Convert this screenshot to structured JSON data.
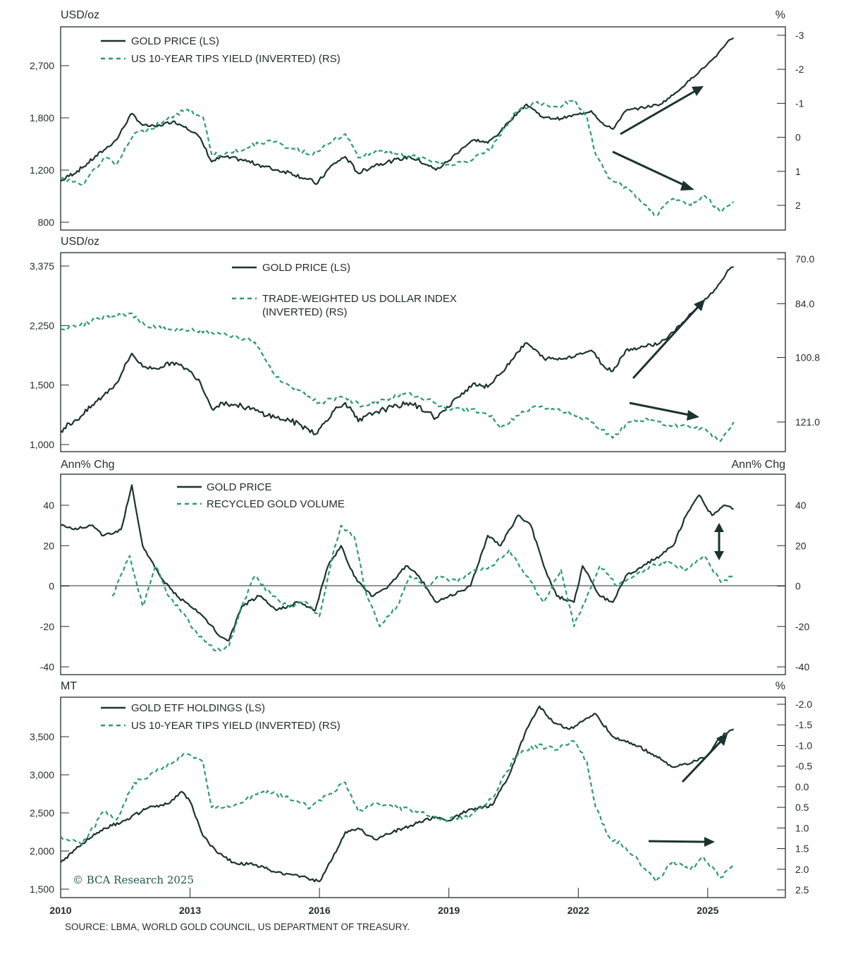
{
  "colors": {
    "gold": "#1b3330",
    "green": "#2f9a75",
    "axis": "#1f2d2b",
    "arrow": "#1b3330",
    "brand": "#1f5a4c"
  },
  "source": "SOURCE: LBMA, WORLD GOLD COUNCIL, US DEPARTMENT OF TREASURY.",
  "copyright": "© BCA Research 2025",
  "x_axis": {
    "ticks": [
      2010,
      2013,
      2016,
      2019,
      2022,
      2025
    ],
    "labels": [
      "2010",
      "2013",
      "2016",
      "2019",
      "2022",
      "2025"
    ]
  },
  "chart_data": [
    {
      "type": "line",
      "left_unit": "USD/oz",
      "right_unit": "%",
      "legend": [
        "GOLD PRICE (LS)",
        "US 10-YEAR TIPS YIELD (INVERTED) (RS)"
      ],
      "left_ticks": [
        2700,
        1800,
        1200,
        800
      ],
      "left_tick_labels": [
        "2,700",
        "1,800",
        "1,200",
        "800"
      ],
      "right_ticks": [
        -3,
        -2,
        -1,
        0,
        1,
        2
      ],
      "right_tick_labels": [
        "-3",
        "-2",
        "-1",
        "0",
        "1",
        "2"
      ],
      "series": [
        {
          "name": "GOLD PRICE (LS)",
          "axis": "left",
          "style": "solid",
          "x": [
            2010,
            2010.5,
            2011,
            2011.3,
            2011.65,
            2011.9,
            2012.2,
            2012.6,
            2012.9,
            2013.2,
            2013.5,
            2013.75,
            2014.2,
            2014.6,
            2015,
            2015.3,
            2015.7,
            2015.95,
            2016.3,
            2016.6,
            2016.9,
            2017.3,
            2017.7,
            2018.1,
            2018.5,
            2018.7,
            2019,
            2019.3,
            2019.6,
            2019.9,
            2020.2,
            2020.6,
            2020.8,
            2021.2,
            2021.6,
            2022.0,
            2022.3,
            2022.6,
            2022.8,
            2023.1,
            2023.5,
            2023.9,
            2024.2,
            2024.5,
            2024.9,
            2025.2,
            2025.5,
            2025.6
          ],
          "y": [
            1100,
            1220,
            1400,
            1520,
            1860,
            1700,
            1680,
            1750,
            1680,
            1560,
            1280,
            1330,
            1300,
            1250,
            1200,
            1180,
            1120,
            1080,
            1250,
            1330,
            1170,
            1250,
            1290,
            1330,
            1250,
            1200,
            1290,
            1420,
            1520,
            1480,
            1620,
            1880,
            2000,
            1800,
            1790,
            1850,
            1900,
            1700,
            1650,
            1900,
            1950,
            2000,
            2150,
            2350,
            2650,
            2900,
            3300,
            3350
          ]
        },
        {
          "name": "US 10-YEAR TIPS YIELD (INVERTED) (RS)",
          "axis": "right",
          "style": "dashed",
          "x": [
            2010,
            2010.5,
            2011,
            2011.3,
            2011.7,
            2012,
            2012.4,
            2012.9,
            2013.3,
            2013.5,
            2013.8,
            2014.3,
            2014.8,
            2015.3,
            2015.8,
            2016.2,
            2016.6,
            2016.9,
            2017.3,
            2017.8,
            2018.3,
            2018.8,
            2019,
            2019.5,
            2020,
            2020.3,
            2020.6,
            2021,
            2021.5,
            2021.9,
            2022.2,
            2022.4,
            2022.7,
            2023,
            2023.4,
            2023.8,
            2024.2,
            2024.6,
            2024.9,
            2025.3,
            2025.6
          ],
          "y": [
            1.2,
            1.4,
            0.6,
            0.8,
            -0.1,
            -0.2,
            -0.5,
            -0.8,
            -0.6,
            0.5,
            0.5,
            0.3,
            0.1,
            0.3,
            0.5,
            0.2,
            -0.1,
            0.6,
            0.4,
            0.5,
            0.6,
            0.8,
            0.8,
            0.7,
            0.3,
            -0.3,
            -0.8,
            -1.0,
            -0.9,
            -1.1,
            -0.6,
            0.5,
            1.2,
            1.4,
            1.8,
            2.3,
            1.8,
            2.0,
            1.7,
            2.2,
            1.9
          ]
        }
      ],
      "arrows": [
        "up",
        "down"
      ]
    },
    {
      "type": "line",
      "left_unit": "USD/oz",
      "right_unit": "",
      "legend": [
        "GOLD PRICE  (LS)",
        "TRADE-WEIGHTED US DOLLAR INDEX",
        "(INVERTED) (RS)"
      ],
      "left_ticks": [
        3375,
        2250,
        1500,
        1000
      ],
      "left_tick_labels": [
        "3,375",
        "2,250",
        "1,500",
        "1,000"
      ],
      "right_ticks": [
        70.0,
        84.0,
        100.8,
        121.0
      ],
      "right_tick_labels": [
        "70.0",
        "84.0",
        "100.8",
        "121.0"
      ],
      "series": [
        {
          "name": "GOLD PRICE  (LS)",
          "axis": "left",
          "style": "solid",
          "x": [
            2010,
            2010.5,
            2011,
            2011.3,
            2011.65,
            2011.9,
            2012.2,
            2012.6,
            2012.9,
            2013.2,
            2013.5,
            2013.75,
            2014.2,
            2014.6,
            2015,
            2015.3,
            2015.7,
            2015.95,
            2016.3,
            2016.6,
            2016.9,
            2017.3,
            2017.7,
            2018.1,
            2018.5,
            2018.7,
            2019,
            2019.3,
            2019.6,
            2019.9,
            2020.2,
            2020.6,
            2020.8,
            2021.2,
            2021.6,
            2022.0,
            2022.3,
            2022.6,
            2022.8,
            2023.1,
            2023.5,
            2023.9,
            2024.2,
            2024.5,
            2024.9,
            2025.2,
            2025.5,
            2025.6
          ],
          "y": [
            1100,
            1220,
            1400,
            1520,
            1860,
            1700,
            1680,
            1750,
            1680,
            1560,
            1280,
            1330,
            1300,
            1250,
            1200,
            1180,
            1120,
            1080,
            1250,
            1330,
            1170,
            1250,
            1290,
            1330,
            1250,
            1200,
            1290,
            1420,
            1520,
            1480,
            1620,
            1880,
            2000,
            1800,
            1790,
            1850,
            1900,
            1700,
            1650,
            1900,
            1950,
            2000,
            2150,
            2350,
            2650,
            2900,
            3300,
            3350
          ]
        },
        {
          "name": "TRADE-WEIGHTED US DOLLAR INDEX (INVERTED) (RS)",
          "axis": "right",
          "style": "dashed",
          "x": [
            2010,
            2010.4,
            2010.8,
            2011.2,
            2011.6,
            2012,
            2012.5,
            2013,
            2013.5,
            2014,
            2014.5,
            2015,
            2015.5,
            2016,
            2016.5,
            2017,
            2017.5,
            2018,
            2018.5,
            2019,
            2019.5,
            2020,
            2020.2,
            2020.6,
            2021,
            2021.5,
            2022,
            2022.3,
            2022.8,
            2023.2,
            2023.6,
            2024,
            2024.5,
            2025,
            2025.3,
            2025.6
          ],
          "y": [
            92,
            91,
            89,
            88,
            87,
            91,
            92,
            92,
            93,
            94,
            96,
            107,
            111,
            115,
            113,
            116,
            114,
            112,
            114,
            117,
            117,
            119,
            123,
            119,
            116,
            117,
            119,
            121,
            126,
            121,
            120,
            122,
            122,
            124,
            127,
            121
          ]
        }
      ],
      "arrows": [
        "up",
        "down"
      ]
    },
    {
      "type": "line",
      "left_unit": "Ann% Chg",
      "right_unit": "Ann% Chg",
      "legend": [
        "GOLD PRICE",
        "RECYCLED GOLD VOLUME"
      ],
      "left_ticks": [
        40,
        20,
        0,
        -20,
        -40
      ],
      "left_tick_labels": [
        "40",
        "20",
        "0",
        "-20",
        "-40"
      ],
      "right_ticks": [
        40,
        20,
        0,
        -20,
        -40
      ],
      "right_tick_labels": [
        "40",
        "20",
        "0",
        "-20",
        "-40"
      ],
      "series": [
        {
          "name": "GOLD PRICE",
          "axis": "left",
          "style": "solid",
          "x": [
            2010,
            2010.3,
            2010.7,
            2011,
            2011.4,
            2011.65,
            2011.9,
            2012.3,
            2012.7,
            2013.0,
            2013.3,
            2013.7,
            2013.9,
            2014.2,
            2014.6,
            2015,
            2015.5,
            2015.9,
            2016.2,
            2016.5,
            2016.8,
            2017.2,
            2017.6,
            2018.0,
            2018.3,
            2018.7,
            2019,
            2019.5,
            2019.9,
            2020.2,
            2020.6,
            2020.9,
            2021.2,
            2021.5,
            2021.9,
            2022.1,
            2022.5,
            2022.8,
            2023.1,
            2023.5,
            2023.9,
            2024.2,
            2024.5,
            2024.8,
            2025.1,
            2025.4,
            2025.6
          ],
          "y": [
            30,
            28,
            30,
            25,
            28,
            50,
            20,
            5,
            -5,
            -10,
            -15,
            -25,
            -27,
            -10,
            -5,
            -12,
            -8,
            -12,
            10,
            20,
            5,
            -5,
            0,
            10,
            5,
            -8,
            -5,
            0,
            25,
            20,
            35,
            30,
            10,
            -5,
            -8,
            10,
            -5,
            -8,
            5,
            10,
            15,
            20,
            35,
            45,
            35,
            40,
            38
          ]
        },
        {
          "name": "RECYCLED GOLD VOLUME",
          "axis": "left",
          "style": "dashed",
          "x": [
            2011.2,
            2011.6,
            2011.9,
            2012.2,
            2012.5,
            2012.9,
            2013.2,
            2013.6,
            2013.9,
            2014.2,
            2014.5,
            2014.9,
            2015.3,
            2015.7,
            2016.0,
            2016.3,
            2016.5,
            2016.8,
            2017.1,
            2017.4,
            2017.8,
            2018.1,
            2018.5,
            2018.8,
            2019.2,
            2019.6,
            2020.0,
            2020.4,
            2020.8,
            2021.2,
            2021.6,
            2021.9,
            2022.2,
            2022.5,
            2022.9,
            2023.3,
            2023.7,
            2024.1,
            2024.5,
            2024.9,
            2025.3,
            2025.6
          ],
          "y": [
            -5,
            15,
            -10,
            10,
            -5,
            -15,
            -25,
            -32,
            -30,
            -10,
            5,
            -5,
            -10,
            -8,
            -15,
            15,
            30,
            25,
            -5,
            -20,
            -10,
            5,
            0,
            5,
            2,
            8,
            10,
            18,
            5,
            -8,
            8,
            -20,
            -5,
            10,
            0,
            5,
            10,
            12,
            8,
            15,
            2,
            5
          ]
        }
      ],
      "arrows": [
        "double"
      ]
    },
    {
      "type": "line",
      "left_unit": "MT",
      "right_unit": "%",
      "legend": [
        "GOLD ETF HOLDINGS (LS)",
        "US 10-YEAR TIPS YIELD (INVERTED) (RS)"
      ],
      "left_ticks": [
        3500,
        3000,
        2500,
        2000,
        1500
      ],
      "left_tick_labels": [
        "3,500",
        "3,000",
        "2,500",
        "2,000",
        "1,500"
      ],
      "right_ticks": [
        -2.0,
        -1.5,
        -1.0,
        -0.5,
        0.0,
        0.5,
        1.0,
        1.5,
        2.0,
        2.5
      ],
      "right_tick_labels": [
        "-2.0",
        "-1.5",
        "-1.0",
        "-0.5",
        "0.0",
        "0.5",
        "1.0",
        "1.5",
        "2.0",
        "2.5"
      ],
      "series": [
        {
          "name": "GOLD ETF HOLDINGS (LS)",
          "axis": "left",
          "style": "solid",
          "x": [
            2010,
            2010.5,
            2011,
            2011.5,
            2012,
            2012.5,
            2012.8,
            2013.0,
            2013.3,
            2013.6,
            2014,
            2014.5,
            2015,
            2015.5,
            2016.0,
            2016.3,
            2016.6,
            2016.9,
            2017.3,
            2017.7,
            2018.2,
            2018.7,
            2019,
            2019.5,
            2020,
            2020.4,
            2020.8,
            2021.1,
            2021.4,
            2021.8,
            2022.1,
            2022.4,
            2022.8,
            2023.3,
            2023.8,
            2024.2,
            2024.6,
            2025.0,
            2025.3,
            2025.6
          ],
          "y": [
            1850,
            2100,
            2300,
            2400,
            2560,
            2620,
            2780,
            2650,
            2200,
            2000,
            1850,
            1820,
            1720,
            1680,
            1600,
            1900,
            2250,
            2300,
            2150,
            2250,
            2350,
            2450,
            2400,
            2550,
            2600,
            3000,
            3600,
            3900,
            3700,
            3600,
            3700,
            3800,
            3500,
            3400,
            3250,
            3100,
            3150,
            3250,
            3500,
            3600
          ]
        },
        {
          "name": "US 10-YEAR TIPS YIELD (INVERTED) (RS)",
          "axis": "right",
          "style": "dashed",
          "x": [
            2010,
            2010.5,
            2011,
            2011.3,
            2011.7,
            2012,
            2012.4,
            2012.9,
            2013.3,
            2013.5,
            2013.8,
            2014.3,
            2014.8,
            2015.3,
            2015.8,
            2016.2,
            2016.6,
            2016.9,
            2017.3,
            2017.8,
            2018.3,
            2018.8,
            2019,
            2019.5,
            2020,
            2020.3,
            2020.6,
            2021,
            2021.5,
            2021.9,
            2022.2,
            2022.4,
            2022.7,
            2023,
            2023.4,
            2023.8,
            2024.2,
            2024.6,
            2024.9,
            2025.3,
            2025.6
          ],
          "y": [
            1.2,
            1.4,
            0.6,
            0.8,
            -0.1,
            -0.2,
            -0.5,
            -0.8,
            -0.6,
            0.5,
            0.5,
            0.3,
            0.1,
            0.3,
            0.5,
            0.2,
            -0.1,
            0.6,
            0.4,
            0.5,
            0.6,
            0.8,
            0.8,
            0.7,
            0.3,
            -0.3,
            -0.8,
            -1.0,
            -0.9,
            -1.1,
            -0.6,
            0.5,
            1.2,
            1.4,
            1.8,
            2.3,
            1.8,
            2.0,
            1.7,
            2.2,
            1.9
          ]
        }
      ],
      "arrows": [
        "up",
        "right"
      ]
    }
  ]
}
